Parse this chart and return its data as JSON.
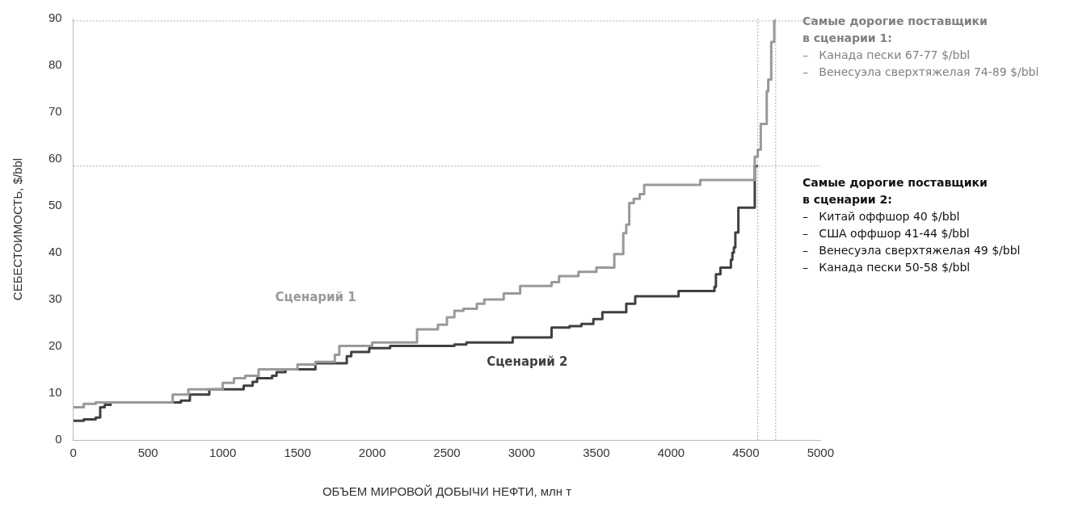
{
  "chart_data": {
    "type": "step",
    "xlabel": "ОБЪЕМ МИРОВОЙ ДОБЫЧИ НЕФТИ, млн т",
    "ylabel": "СЕБЕСТОИМОСТЬ, $/bbl",
    "xlim": [
      0,
      5000
    ],
    "xticks": [
      0,
      500,
      1000,
      1500,
      2000,
      2500,
      3000,
      3500,
      4000,
      4500,
      5000
    ],
    "ylim": [
      0,
      90
    ],
    "yticks": [
      0,
      10,
      20,
      30,
      40,
      50,
      60,
      70,
      80,
      90
    ],
    "grid": false,
    "legend": false,
    "marker": "none",
    "line_style": "solid",
    "series": [
      {
        "name": "Сценарий 1",
        "color": "#999999",
        "x": [
          0,
          70,
          150,
          665,
          770,
          1000,
          1075,
          1150,
          1240,
          1500,
          1620,
          1750,
          1780,
          2000,
          2300,
          2440,
          2500,
          2550,
          2610,
          2700,
          2750,
          2880,
          2990,
          3200,
          3250,
          3380,
          3500,
          3620,
          3680,
          3700,
          3720,
          3750,
          3790,
          3820,
          4195,
          4560,
          4580,
          4600,
          4640,
          4650,
          4670,
          4690,
          4700
        ],
        "values": [
          7.0,
          7.7,
          8.0,
          9.7,
          10.8,
          12.2,
          13.2,
          13.7,
          15.1,
          16.1,
          16.7,
          18.2,
          20.1,
          20.8,
          23.6,
          24.6,
          26.2,
          27.6,
          28.0,
          29.1,
          30.0,
          31.3,
          32.9,
          33.7,
          35.0,
          35.9,
          36.8,
          39.7,
          44.2,
          46.0,
          50.6,
          51.5,
          52.5,
          54.5,
          55.5,
          60.5,
          62.0,
          67.5,
          74.5,
          77.0,
          85.0,
          89.5,
          89.5
        ]
      },
      {
        "name": "Сценарий 2",
        "color": "#404040",
        "x": [
          0,
          70,
          150,
          180,
          210,
          250,
          720,
          780,
          910,
          1140,
          1200,
          1230,
          1330,
          1360,
          1420,
          1620,
          1830,
          1860,
          1980,
          2120,
          2550,
          2630,
          2940,
          3200,
          3320,
          3400,
          3480,
          3540,
          3700,
          3760,
          4050,
          4290,
          4300,
          4330,
          4400,
          4410,
          4420,
          4430,
          4450,
          4560,
          4580
        ],
        "values": [
          4.1,
          4.4,
          4.8,
          7.0,
          7.5,
          8.0,
          8.4,
          9.7,
          10.8,
          11.6,
          12.4,
          13.2,
          13.7,
          14.5,
          15.1,
          16.4,
          17.9,
          18.8,
          19.6,
          20.1,
          20.4,
          20.8,
          21.9,
          24.0,
          24.3,
          24.8,
          25.8,
          27.3,
          29.1,
          30.7,
          31.8,
          32.7,
          35.4,
          36.8,
          38.5,
          40.0,
          41.1,
          44.3,
          49.6,
          58.5,
          58.5
        ]
      }
    ],
    "ref_lines": [
      {
        "axis": "y",
        "value": 58.5,
        "color": "#aaaaaa",
        "line_style": "dotted"
      },
      {
        "axis": "y",
        "value": 89.5,
        "color": "#aaaaaa",
        "line_style": "dotted"
      },
      {
        "axis": "x",
        "value": 4580,
        "color": "#aaaaaa",
        "line_style": "dotted"
      },
      {
        "axis": "x",
        "value": 4700,
        "color": "#aaaaaa",
        "line_style": "dotted"
      }
    ],
    "annotations": [
      "Самые дорогие поставщики\nв сценарии 1:\n–   Канада пески 67-77 $/bbl\n–   Венесуэла сверхтяжелая 74-89 $/bbl",
      "Самые дорогие поставщики\nв сценарии 2:\n–   Китай оффшор 40 $/bbl\n–   США оффшор 41-44 $/bbl\n–   Венесуэла сверхтяжелая 49 $/bbl\n–   Канада пески 50-58 $/bbl"
    ]
  }
}
